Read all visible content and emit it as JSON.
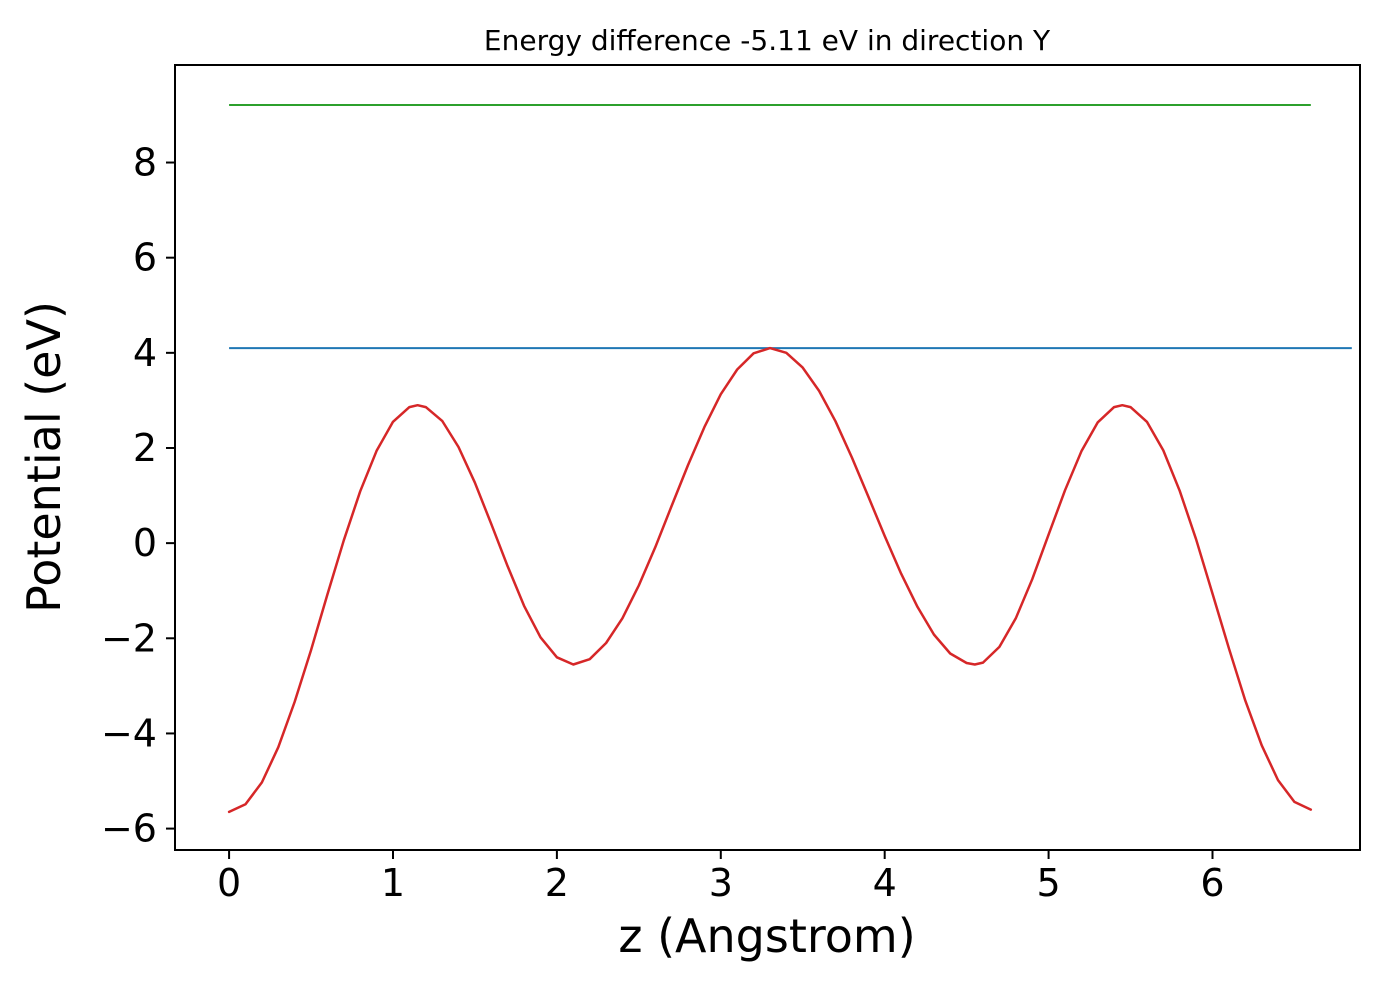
{
  "figure": {
    "title": "Energy difference -5.11 eV in direction Y",
    "xlabel": "z (Angstrom)",
    "ylabel": "Potential (eV)"
  },
  "chart_data": {
    "type": "line",
    "title": "Energy difference -5.11 eV in direction Y",
    "xlabel": "z (Angstrom)",
    "ylabel": "Potential (eV)",
    "xlim": [
      -0.33,
      6.9
    ],
    "ylim": [
      -6.45,
      10.05
    ],
    "xticks": [
      0,
      1,
      2,
      3,
      4,
      5,
      6
    ],
    "xtick_labels": [
      "0",
      "1",
      "2",
      "3",
      "4",
      "5",
      "6"
    ],
    "yticks": [
      -6,
      -4,
      -2,
      0,
      2,
      4,
      6,
      8
    ],
    "ytick_labels": [
      "−6",
      "−4",
      "−2",
      "0",
      "2",
      "4",
      "6",
      "8"
    ],
    "grid": false,
    "legend": null,
    "colors": {
      "curve": "#d62728",
      "level_blue": "#1f77b4",
      "level_green": "#2ca02c",
      "axes": "#000000"
    },
    "series": [
      {
        "name": "reference-line-green",
        "kind": "hline",
        "value": 9.21,
        "x_start": 0.0,
        "x_end": 6.6,
        "color": "#2ca02c",
        "width": 2
      },
      {
        "name": "reference-line-blue",
        "kind": "hline",
        "value": 4.1,
        "x_start": 0.0,
        "x_end": 6.85,
        "color": "#1f77b4",
        "width": 2
      },
      {
        "name": "potential-curve",
        "kind": "line",
        "color": "#d62728",
        "width": 2.5,
        "x": [
          0.0,
          0.1,
          0.2,
          0.3,
          0.4,
          0.5,
          0.6,
          0.7,
          0.8,
          0.9,
          1.0,
          1.1,
          1.15,
          1.2,
          1.3,
          1.4,
          1.5,
          1.6,
          1.7,
          1.8,
          1.9,
          2.0,
          2.1,
          2.2,
          2.3,
          2.4,
          2.5,
          2.6,
          2.7,
          2.8,
          2.9,
          3.0,
          3.1,
          3.2,
          3.3,
          3.4,
          3.5,
          3.6,
          3.7,
          3.8,
          3.9,
          4.0,
          4.1,
          4.2,
          4.3,
          4.4,
          4.5,
          4.55,
          4.6,
          4.7,
          4.8,
          4.9,
          5.0,
          5.1,
          5.2,
          5.3,
          5.4,
          5.45,
          5.5,
          5.6,
          5.7,
          5.8,
          5.9,
          6.0,
          6.1,
          6.2,
          6.3,
          6.4,
          6.5,
          6.6
        ],
        "y": [
          -5.65,
          -5.49,
          -5.03,
          -4.29,
          -3.34,
          -2.25,
          -1.08,
          0.06,
          1.09,
          1.94,
          2.55,
          2.86,
          2.9,
          2.86,
          2.57,
          2.02,
          1.27,
          0.4,
          -0.49,
          -1.32,
          -1.98,
          -2.4,
          -2.55,
          -2.44,
          -2.1,
          -1.58,
          -0.89,
          -0.09,
          0.78,
          1.64,
          2.44,
          3.13,
          3.65,
          3.99,
          4.1,
          4.0,
          3.69,
          3.2,
          2.56,
          1.8,
          0.98,
          0.15,
          -0.64,
          -1.34,
          -1.92,
          -2.32,
          -2.52,
          -2.55,
          -2.51,
          -2.18,
          -1.58,
          -0.76,
          0.18,
          1.11,
          1.93,
          2.54,
          2.86,
          2.9,
          2.86,
          2.55,
          1.95,
          1.1,
          0.08,
          -1.06,
          -2.21,
          -3.31,
          -4.25,
          -4.98,
          -5.44,
          -5.6
        ]
      }
    ]
  }
}
